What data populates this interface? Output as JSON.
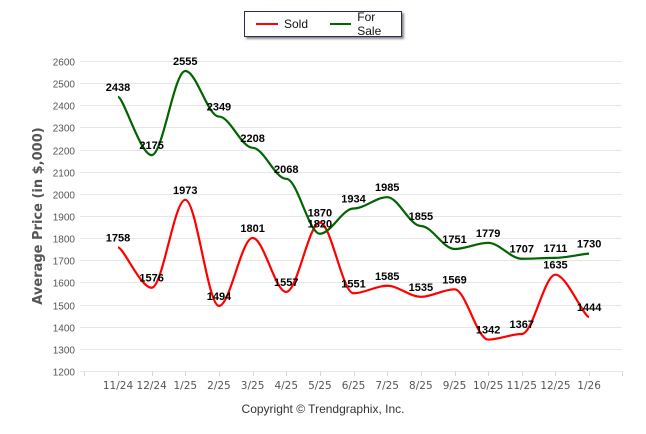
{
  "chart_data": {
    "type": "line",
    "title": "",
    "xlabel": "",
    "ylabel": "Average Price (in $,000)",
    "categories": [
      "11/24",
      "12/24",
      "1/25",
      "2/25",
      "3/25",
      "4/25",
      "5/25",
      "6/25",
      "7/25",
      "8/25",
      "9/25",
      "10/25",
      "11/25",
      "12/25",
      "1/26"
    ],
    "ylim": [
      1200,
      2600
    ],
    "yticks": [
      1200,
      1300,
      1400,
      1500,
      1600,
      1700,
      1800,
      1900,
      2000,
      2100,
      2200,
      2300,
      2400,
      2500,
      2600
    ],
    "grid": true,
    "legend_position": "top-center",
    "series": [
      {
        "name": "Sold",
        "color": "#ff0000",
        "values": [
          1758,
          1576,
          1973,
          1494,
          1801,
          1557,
          1870,
          1551,
          1585,
          1535,
          1569,
          1342,
          1367,
          1635,
          1444
        ]
      },
      {
        "name": "For Sale",
        "color": "#006400",
        "values": [
          2438,
          2175,
          2555,
          2349,
          2208,
          2068,
          1820,
          1934,
          1985,
          1855,
          1751,
          1779,
          1707,
          1711,
          1730
        ]
      }
    ]
  },
  "legend": {
    "items": [
      {
        "label": "Sold",
        "color": "#ff0000"
      },
      {
        "label": "For Sale",
        "color": "#006400"
      }
    ]
  },
  "footer": {
    "copyright": "Copyright © Trendgraphix, Inc."
  }
}
